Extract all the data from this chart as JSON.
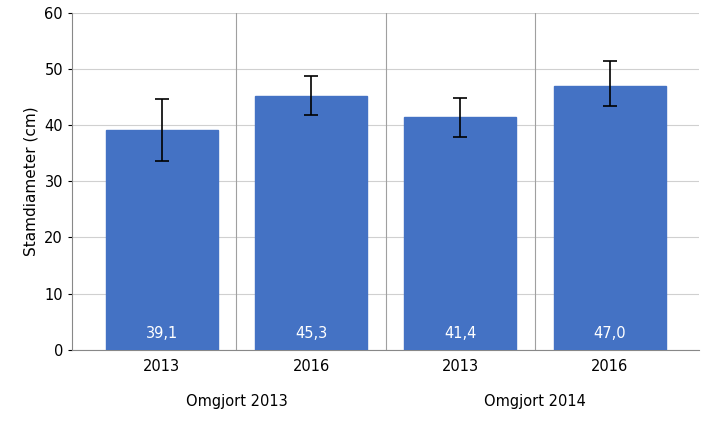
{
  "groups": [
    "Omgjort 2013",
    "Omgjort 2014"
  ],
  "years": [
    "2013",
    "2016"
  ],
  "values": [
    [
      39.1,
      45.3
    ],
    [
      41.4,
      47.0
    ]
  ],
  "errors_upper": [
    [
      5.5,
      3.5
    ],
    [
      3.5,
      4.5
    ]
  ],
  "errors_lower": [
    [
      5.5,
      3.5
    ],
    [
      3.5,
      3.5
    ]
  ],
  "bar_color": "#4472C4",
  "ylabel": "Stamdiameter (cm)",
  "ylim": [
    0,
    60
  ],
  "yticks": [
    0,
    10,
    20,
    30,
    40,
    50,
    60
  ],
  "value_labels": [
    [
      "39,1",
      "45,3"
    ],
    [
      "41,4",
      "47,0"
    ]
  ],
  "bar_width": 0.75,
  "label_fontsize": 10.5,
  "tick_fontsize": 10.5,
  "ylabel_fontsize": 11,
  "group_label_fontsize": 10.5,
  "background_color": "#ffffff",
  "grid_color": "#d0d0d0"
}
